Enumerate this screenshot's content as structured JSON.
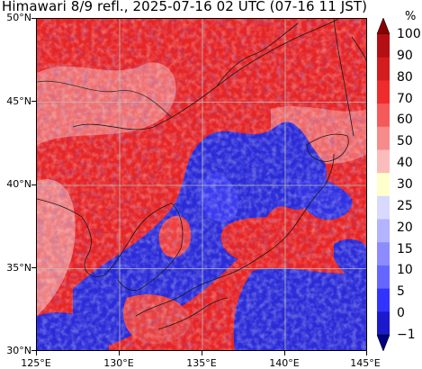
{
  "title": "Himawari 8/9 refl., 2025-07-16 02 UTC (07-16 11 JST)",
  "lat_labels": [
    "50°N",
    "45°N",
    "40°N",
    "35°N",
    "30°N"
  ],
  "lon_labels": [
    "125°E",
    "130°E",
    "135°E",
    "140°E",
    "145°E"
  ],
  "colorbar": {
    "unit": "%",
    "labels": [
      "100",
      "90",
      "80",
      "70",
      "60",
      "50",
      "40",
      "30",
      "25",
      "20",
      "15",
      "10",
      "5",
      "0",
      "−1"
    ],
    "colors": [
      "#8b0000",
      "#b40f14",
      "#d21c1e",
      "#ef2b2b",
      "#f45a5a",
      "#f78b8b",
      "#fbbcbc",
      "#ffffcc",
      "#d9d9ff",
      "#b3b3ff",
      "#8c8cff",
      "#6666ff",
      "#3333ff",
      "#1a1acc",
      "#00007f"
    ]
  },
  "colors": {
    "cloud_high": "#e82424",
    "cloud_mid": "#f07070",
    "clear_sea": "#2a2ad8",
    "clear_land": "#3636e6",
    "coast": "#1a1a1a",
    "grid": "#bbbbbb"
  }
}
